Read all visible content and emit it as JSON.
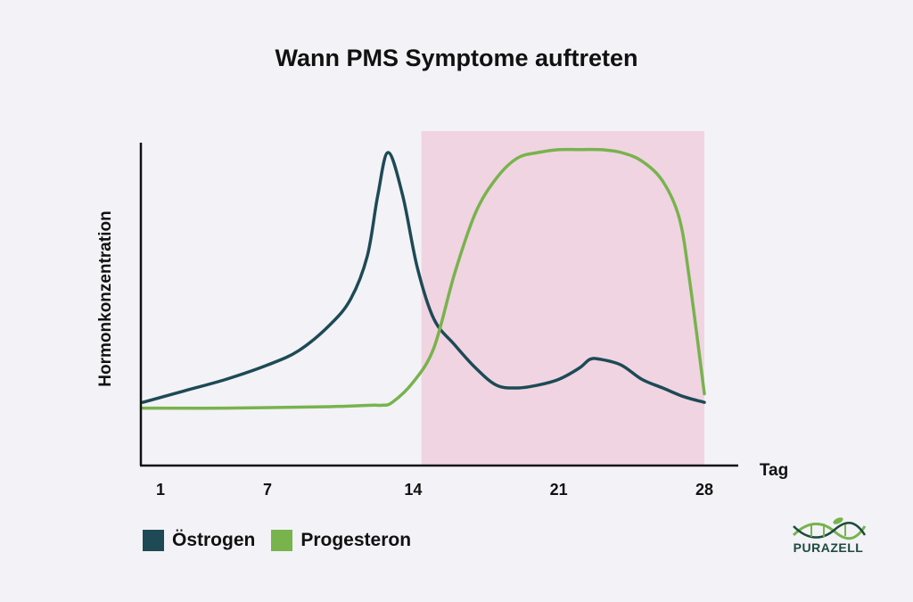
{
  "title": "Wann PMS Symptome auftreten",
  "colors": {
    "background": "#f3f2f7",
    "pms_region": "#f0d4e2",
    "oestrogen": "#1d4a55",
    "progesteron": "#78b34c",
    "axis": "#111111"
  },
  "chart_data": {
    "type": "line",
    "title": "Wann PMS Symptome auftreten",
    "xlabel": "Tag",
    "ylabel": "Hormonkonzentration",
    "xlim": [
      1,
      28
    ],
    "ylim": [
      0,
      100
    ],
    "x_ticks": [
      1,
      7,
      14,
      21,
      28
    ],
    "shaded_region": {
      "x_start": 14.4,
      "x_end": 28,
      "color": "#f0d4e2"
    },
    "y_tick_labels_shown": false,
    "grid": false,
    "legend_position": "bottom-left",
    "series": [
      {
        "name": "Östrogen",
        "color": "#1d4a55",
        "x": [
          1,
          3,
          5,
          7,
          8.5,
          10,
          11,
          11.8,
          12.3,
          12.8,
          13.5,
          14.2,
          15,
          16,
          17,
          18,
          19,
          20,
          21,
          22,
          22.5,
          23,
          24,
          25,
          26,
          27,
          28
        ],
        "y": [
          13,
          17,
          21,
          26,
          31,
          40,
          49,
          64,
          85,
          100,
          85,
          60,
          42,
          33,
          25,
          19,
          18,
          19,
          21,
          25,
          28,
          28,
          26,
          21,
          18,
          15,
          13
        ]
      },
      {
        "name": "Progesteron",
        "color": "#78b34c",
        "x": [
          1,
          5,
          10,
          12,
          12.5,
          13,
          14,
          15,
          16,
          17,
          18,
          19,
          20,
          21,
          22,
          23,
          24,
          25,
          26,
          26.8,
          27.3,
          28
        ],
        "y": [
          11,
          11,
          11.5,
          12,
          12,
          13,
          20,
          32,
          58,
          79,
          91,
          98,
          100,
          101,
          101,
          101,
          100,
          97,
          90,
          77,
          55,
          16
        ]
      }
    ]
  },
  "legend": {
    "items": [
      {
        "label": "Östrogen",
        "color": "#1d4a55"
      },
      {
        "label": "Progesteron",
        "color": "#78b34c"
      }
    ]
  },
  "logo": {
    "text": "PURAZELL"
  }
}
